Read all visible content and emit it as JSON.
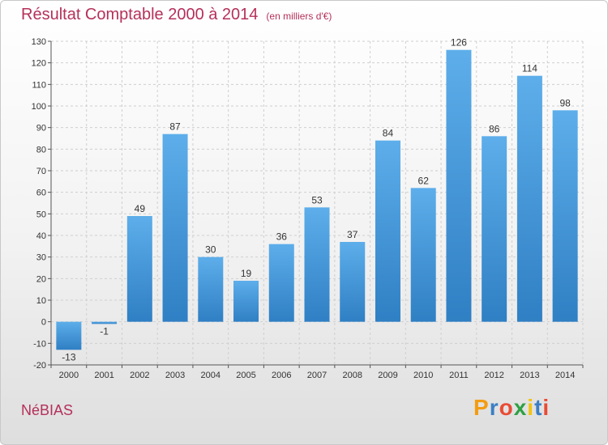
{
  "title": "Résultat Comptable 2000 à 2014",
  "subtitle": "(en milliers d'€)",
  "commune": "NéBIAS",
  "logo": {
    "letters": [
      "P",
      "r",
      "o",
      "x",
      "i",
      "t",
      "i"
    ],
    "colors": [
      "#f39c12",
      "#3a7fc4",
      "#e94b35",
      "#2ea043",
      "#f1c40f",
      "#3a7fc4",
      "#e94b35"
    ]
  },
  "colors": {
    "bar_top": "#5daeea",
    "bar_bottom": "#2f7fc4",
    "title": "#b5305a"
  },
  "chart_data": {
    "type": "bar",
    "title": "Résultat Comptable 2000 à 2014",
    "ylabel": "en milliers d'€",
    "categories": [
      "2000",
      "2001",
      "2002",
      "2003",
      "2004",
      "2005",
      "2006",
      "2007",
      "2008",
      "2009",
      "2010",
      "2011",
      "2012",
      "2013",
      "2014"
    ],
    "values": [
      -13,
      -1,
      49,
      87,
      30,
      19,
      36,
      53,
      37,
      84,
      62,
      126,
      86,
      114,
      98
    ],
    "ylim": [
      -20,
      130
    ],
    "yticks": [
      -20,
      -10,
      0,
      10,
      20,
      30,
      40,
      50,
      60,
      70,
      80,
      90,
      100,
      110,
      120,
      130
    ],
    "grid": true
  }
}
